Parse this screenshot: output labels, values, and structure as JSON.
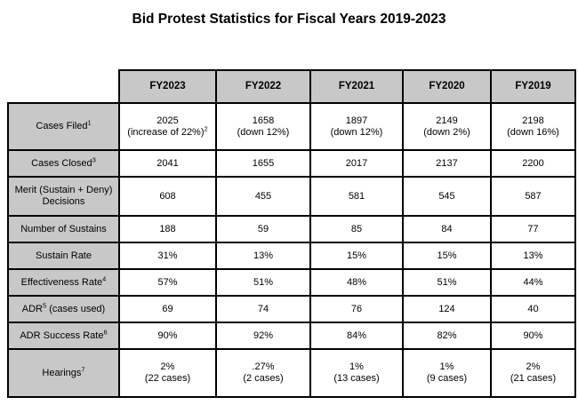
{
  "title": "Bid Protest Statistics for Fiscal Years 2019-2023",
  "colors": {
    "page_bg": "#ffffff",
    "header_bg": "#c8c8c8",
    "border": "#000000",
    "text": "#000000"
  },
  "table": {
    "columns": [
      "FY2023",
      "FY2022",
      "FY2021",
      "FY2020",
      "FY2019"
    ],
    "rows": [
      {
        "label": [
          [
            {
              "t": "Cases Filed"
            },
            {
              "s": "1"
            }
          ]
        ],
        "cells": [
          [
            [
              {
                "t": "2025"
              }
            ],
            [
              {
                "t": "(increase of 22%)"
              },
              {
                "s": "2"
              }
            ]
          ],
          [
            [
              {
                "t": "1658"
              }
            ],
            [
              {
                "t": "(down 12%)"
              }
            ]
          ],
          [
            [
              {
                "t": "1897"
              }
            ],
            [
              {
                "t": "(down 12%)"
              }
            ]
          ],
          [
            [
              {
                "t": "2149"
              }
            ],
            [
              {
                "t": "(down 2%)"
              }
            ]
          ],
          [
            [
              {
                "t": "2198"
              }
            ],
            [
              {
                "t": "(down 16%)"
              }
            ]
          ]
        ]
      },
      {
        "label": [
          [
            {
              "t": "Cases Closed"
            },
            {
              "s": "3"
            }
          ]
        ],
        "cells": [
          [
            [
              {
                "t": "2041"
              }
            ]
          ],
          [
            [
              {
                "t": "1655"
              }
            ]
          ],
          [
            [
              {
                "t": "2017"
              }
            ]
          ],
          [
            [
              {
                "t": "2137"
              }
            ]
          ],
          [
            [
              {
                "t": "2200"
              }
            ]
          ]
        ]
      },
      {
        "label": [
          [
            {
              "t": "Merit (Sustain + Deny)"
            }
          ],
          [
            {
              "t": "Decisions"
            }
          ]
        ],
        "cells": [
          [
            [
              {
                "t": "608"
              }
            ]
          ],
          [
            [
              {
                "t": "455"
              }
            ]
          ],
          [
            [
              {
                "t": "581"
              }
            ]
          ],
          [
            [
              {
                "t": "545"
              }
            ]
          ],
          [
            [
              {
                "t": "587"
              }
            ]
          ]
        ]
      },
      {
        "label": [
          [
            {
              "t": "Number of Sustains"
            }
          ]
        ],
        "cells": [
          [
            [
              {
                "t": "188"
              }
            ]
          ],
          [
            [
              {
                "t": "59"
              }
            ]
          ],
          [
            [
              {
                "t": "85"
              }
            ]
          ],
          [
            [
              {
                "t": "84"
              }
            ]
          ],
          [
            [
              {
                "t": "77"
              }
            ]
          ]
        ]
      },
      {
        "label": [
          [
            {
              "t": "Sustain Rate"
            }
          ]
        ],
        "cells": [
          [
            [
              {
                "t": "31%"
              }
            ]
          ],
          [
            [
              {
                "t": "13%"
              }
            ]
          ],
          [
            [
              {
                "t": "15%"
              }
            ]
          ],
          [
            [
              {
                "t": "15%"
              }
            ]
          ],
          [
            [
              {
                "t": "13%"
              }
            ]
          ]
        ]
      },
      {
        "label": [
          [
            {
              "t": "Effectiveness Rate"
            },
            {
              "s": "4"
            }
          ]
        ],
        "cells": [
          [
            [
              {
                "t": "57%"
              }
            ]
          ],
          [
            [
              {
                "t": "51%"
              }
            ]
          ],
          [
            [
              {
                "t": "48%"
              }
            ]
          ],
          [
            [
              {
                "t": "51%"
              }
            ]
          ],
          [
            [
              {
                "t": "44%"
              }
            ]
          ]
        ]
      },
      {
        "label": [
          [
            {
              "t": "ADR"
            },
            {
              "s": "5"
            },
            {
              "t": " (cases used)"
            }
          ]
        ],
        "cells": [
          [
            [
              {
                "t": "69"
              }
            ]
          ],
          [
            [
              {
                "t": "74"
              }
            ]
          ],
          [
            [
              {
                "t": "76"
              }
            ]
          ],
          [
            [
              {
                "t": "124"
              }
            ]
          ],
          [
            [
              {
                "t": "40"
              }
            ]
          ]
        ]
      },
      {
        "label": [
          [
            {
              "t": "ADR Success Rate"
            },
            {
              "s": "6"
            }
          ]
        ],
        "cells": [
          [
            [
              {
                "t": "90%"
              }
            ]
          ],
          [
            [
              {
                "t": "92%"
              }
            ]
          ],
          [
            [
              {
                "t": "84%"
              }
            ]
          ],
          [
            [
              {
                "t": "82%"
              }
            ]
          ],
          [
            [
              {
                "t": "90%"
              }
            ]
          ]
        ]
      },
      {
        "label": [
          [
            {
              "t": "Hearings"
            },
            {
              "s": "7"
            }
          ]
        ],
        "cells": [
          [
            [
              {
                "t": "2%"
              }
            ],
            [
              {
                "t": "(22 cases)"
              }
            ]
          ],
          [
            [
              {
                "t": ".27%"
              }
            ],
            [
              {
                "t": "(2 cases)"
              }
            ]
          ],
          [
            [
              {
                "t": "1%"
              }
            ],
            [
              {
                "t": "(13 cases)"
              }
            ]
          ],
          [
            [
              {
                "t": "1%"
              }
            ],
            [
              {
                "t": "(9 cases)"
              }
            ]
          ],
          [
            [
              {
                "t": "2%"
              }
            ],
            [
              {
                "t": "(21 cases)"
              }
            ]
          ]
        ]
      }
    ]
  }
}
